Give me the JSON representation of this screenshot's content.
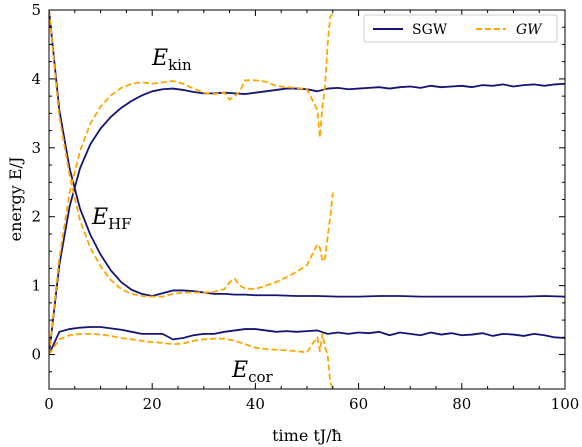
{
  "chart_data": {
    "type": "line",
    "xlabel": "time tJ/ħ",
    "ylabel": "energy E/J",
    "xlim": [
      0,
      100
    ],
    "ylim": [
      -0.5,
      5
    ],
    "x_ticks": [
      "0",
      "20",
      "40",
      "60",
      "80",
      "100"
    ],
    "y_ticks": [
      "0",
      "1",
      "2",
      "3",
      "4",
      "5"
    ],
    "legend_position": "top-right",
    "grid": false,
    "colors": {
      "SGW": "#141478",
      "GW": "#ffa500"
    },
    "annotations": [
      {
        "text": "E",
        "subscript": "kin"
      },
      {
        "text": "E",
        "subscript": "HF"
      },
      {
        "text": "E",
        "subscript": "cor"
      }
    ],
    "series": [
      {
        "name": "SGW",
        "quantity": "kin",
        "x": [
          0,
          2,
          4,
          6,
          8,
          10,
          12,
          14,
          16,
          18,
          20,
          22,
          24,
          26,
          28,
          30,
          32,
          34,
          36,
          38,
          40,
          42,
          44,
          46,
          48,
          50,
          52,
          54,
          56,
          58,
          60,
          62,
          64,
          66,
          68,
          70,
          72,
          74,
          76,
          78,
          80,
          82,
          84,
          86,
          88,
          90,
          92,
          94,
          96,
          98,
          100
        ],
        "y": [
          0,
          1.3,
          2.15,
          2.7,
          3.05,
          3.28,
          3.45,
          3.58,
          3.68,
          3.76,
          3.82,
          3.85,
          3.86,
          3.84,
          3.81,
          3.79,
          3.79,
          3.8,
          3.79,
          3.78,
          3.8,
          3.82,
          3.84,
          3.86,
          3.86,
          3.85,
          3.82,
          3.86,
          3.87,
          3.85,
          3.86,
          3.87,
          3.88,
          3.86,
          3.88,
          3.89,
          3.87,
          3.9,
          3.88,
          3.89,
          3.9,
          3.88,
          3.91,
          3.9,
          3.92,
          3.89,
          3.91,
          3.92,
          3.9,
          3.92,
          3.93
        ]
      },
      {
        "name": "SGW",
        "quantity": "HF",
        "x": [
          0,
          2,
          4,
          6,
          8,
          10,
          12,
          14,
          16,
          18,
          20,
          22,
          24,
          26,
          28,
          30,
          32,
          34,
          36,
          38,
          40,
          44,
          48,
          52,
          56,
          60,
          64,
          68,
          72,
          76,
          80,
          84,
          88,
          92,
          96,
          100
        ],
        "y": [
          5,
          3.55,
          2.7,
          2.12,
          1.74,
          1.45,
          1.22,
          1.05,
          0.94,
          0.88,
          0.85,
          0.89,
          0.93,
          0.93,
          0.92,
          0.9,
          0.88,
          0.88,
          0.87,
          0.87,
          0.86,
          0.86,
          0.85,
          0.85,
          0.84,
          0.84,
          0.85,
          0.85,
          0.84,
          0.84,
          0.84,
          0.84,
          0.84,
          0.84,
          0.85,
          0.84
        ]
      },
      {
        "name": "SGW",
        "quantity": "cor",
        "x": [
          0,
          2,
          4,
          6,
          8,
          10,
          12,
          14,
          16,
          18,
          20,
          22,
          24,
          26,
          28,
          30,
          32,
          34,
          36,
          38,
          40,
          42,
          44,
          46,
          48,
          50,
          52,
          54,
          56,
          58,
          60,
          62,
          64,
          66,
          68,
          70,
          72,
          74,
          76,
          78,
          80,
          82,
          84,
          86,
          88,
          90,
          92,
          94,
          96,
          98,
          100
        ],
        "y": [
          0,
          0.33,
          0.37,
          0.39,
          0.4,
          0.4,
          0.38,
          0.36,
          0.33,
          0.3,
          0.3,
          0.3,
          0.22,
          0.24,
          0.28,
          0.3,
          0.3,
          0.33,
          0.35,
          0.37,
          0.37,
          0.35,
          0.33,
          0.34,
          0.33,
          0.34,
          0.35,
          0.3,
          0.32,
          0.3,
          0.32,
          0.31,
          0.33,
          0.28,
          0.32,
          0.3,
          0.28,
          0.32,
          0.29,
          0.31,
          0.28,
          0.29,
          0.31,
          0.27,
          0.3,
          0.29,
          0.27,
          0.3,
          0.28,
          0.25,
          0.24
        ]
      },
      {
        "name": "GW",
        "quantity": "kin",
        "x": [
          0,
          2,
          4,
          6,
          8,
          10,
          12,
          14,
          16,
          18,
          20,
          22,
          24,
          26,
          28,
          30,
          32,
          34,
          35,
          36,
          37,
          38,
          40,
          42,
          44,
          46,
          48,
          50,
          51,
          52,
          52.5,
          53,
          53.5,
          54,
          54.5,
          55
        ],
        "y": [
          0,
          1.4,
          2.35,
          2.95,
          3.35,
          3.6,
          3.76,
          3.87,
          3.93,
          3.95,
          3.93,
          3.95,
          3.97,
          3.93,
          3.86,
          3.8,
          3.78,
          3.8,
          3.7,
          3.75,
          3.82,
          3.98,
          3.98,
          3.96,
          3.9,
          3.88,
          3.87,
          3.85,
          3.7,
          3.55,
          3.15,
          3.6,
          3.9,
          4.5,
          4.9,
          4.95
        ]
      },
      {
        "name": "GW",
        "quantity": "HF",
        "x": [
          0,
          2,
          4,
          6,
          8,
          10,
          12,
          14,
          16,
          18,
          20,
          22,
          24,
          26,
          28,
          30,
          32,
          34,
          35,
          36,
          37,
          38,
          40,
          42,
          44,
          46,
          48,
          50,
          51,
          52,
          52.5,
          53,
          53.5,
          54,
          54.5,
          55
        ],
        "y": [
          5,
          3.45,
          2.6,
          1.95,
          1.55,
          1.28,
          1.08,
          0.95,
          0.88,
          0.85,
          0.84,
          0.84,
          0.88,
          0.9,
          0.9,
          0.9,
          0.91,
          0.95,
          1.05,
          1.1,
          1.0,
          0.96,
          0.95,
          1.0,
          1.05,
          1.12,
          1.2,
          1.3,
          1.45,
          1.6,
          1.55,
          1.35,
          1.4,
          1.7,
          2.0,
          2.35
        ]
      },
      {
        "name": "GW",
        "quantity": "cor",
        "x": [
          0,
          2,
          4,
          6,
          8,
          10,
          12,
          14,
          16,
          18,
          20,
          22,
          24,
          26,
          28,
          30,
          32,
          34,
          36,
          38,
          40,
          42,
          44,
          46,
          48,
          50,
          51,
          52,
          52.5,
          53,
          53.5,
          54,
          54.5,
          55
        ],
        "y": [
          0,
          0.22,
          0.28,
          0.3,
          0.3,
          0.29,
          0.27,
          0.24,
          0.22,
          0.2,
          0.18,
          0.17,
          0.15,
          0.16,
          0.2,
          0.22,
          0.23,
          0.23,
          0.2,
          0.15,
          0.1,
          0.08,
          0.07,
          0.06,
          0.05,
          0.03,
          0.15,
          0.25,
          0.05,
          0.3,
          0.1,
          0.0,
          -0.4,
          -0.5
        ]
      }
    ]
  }
}
